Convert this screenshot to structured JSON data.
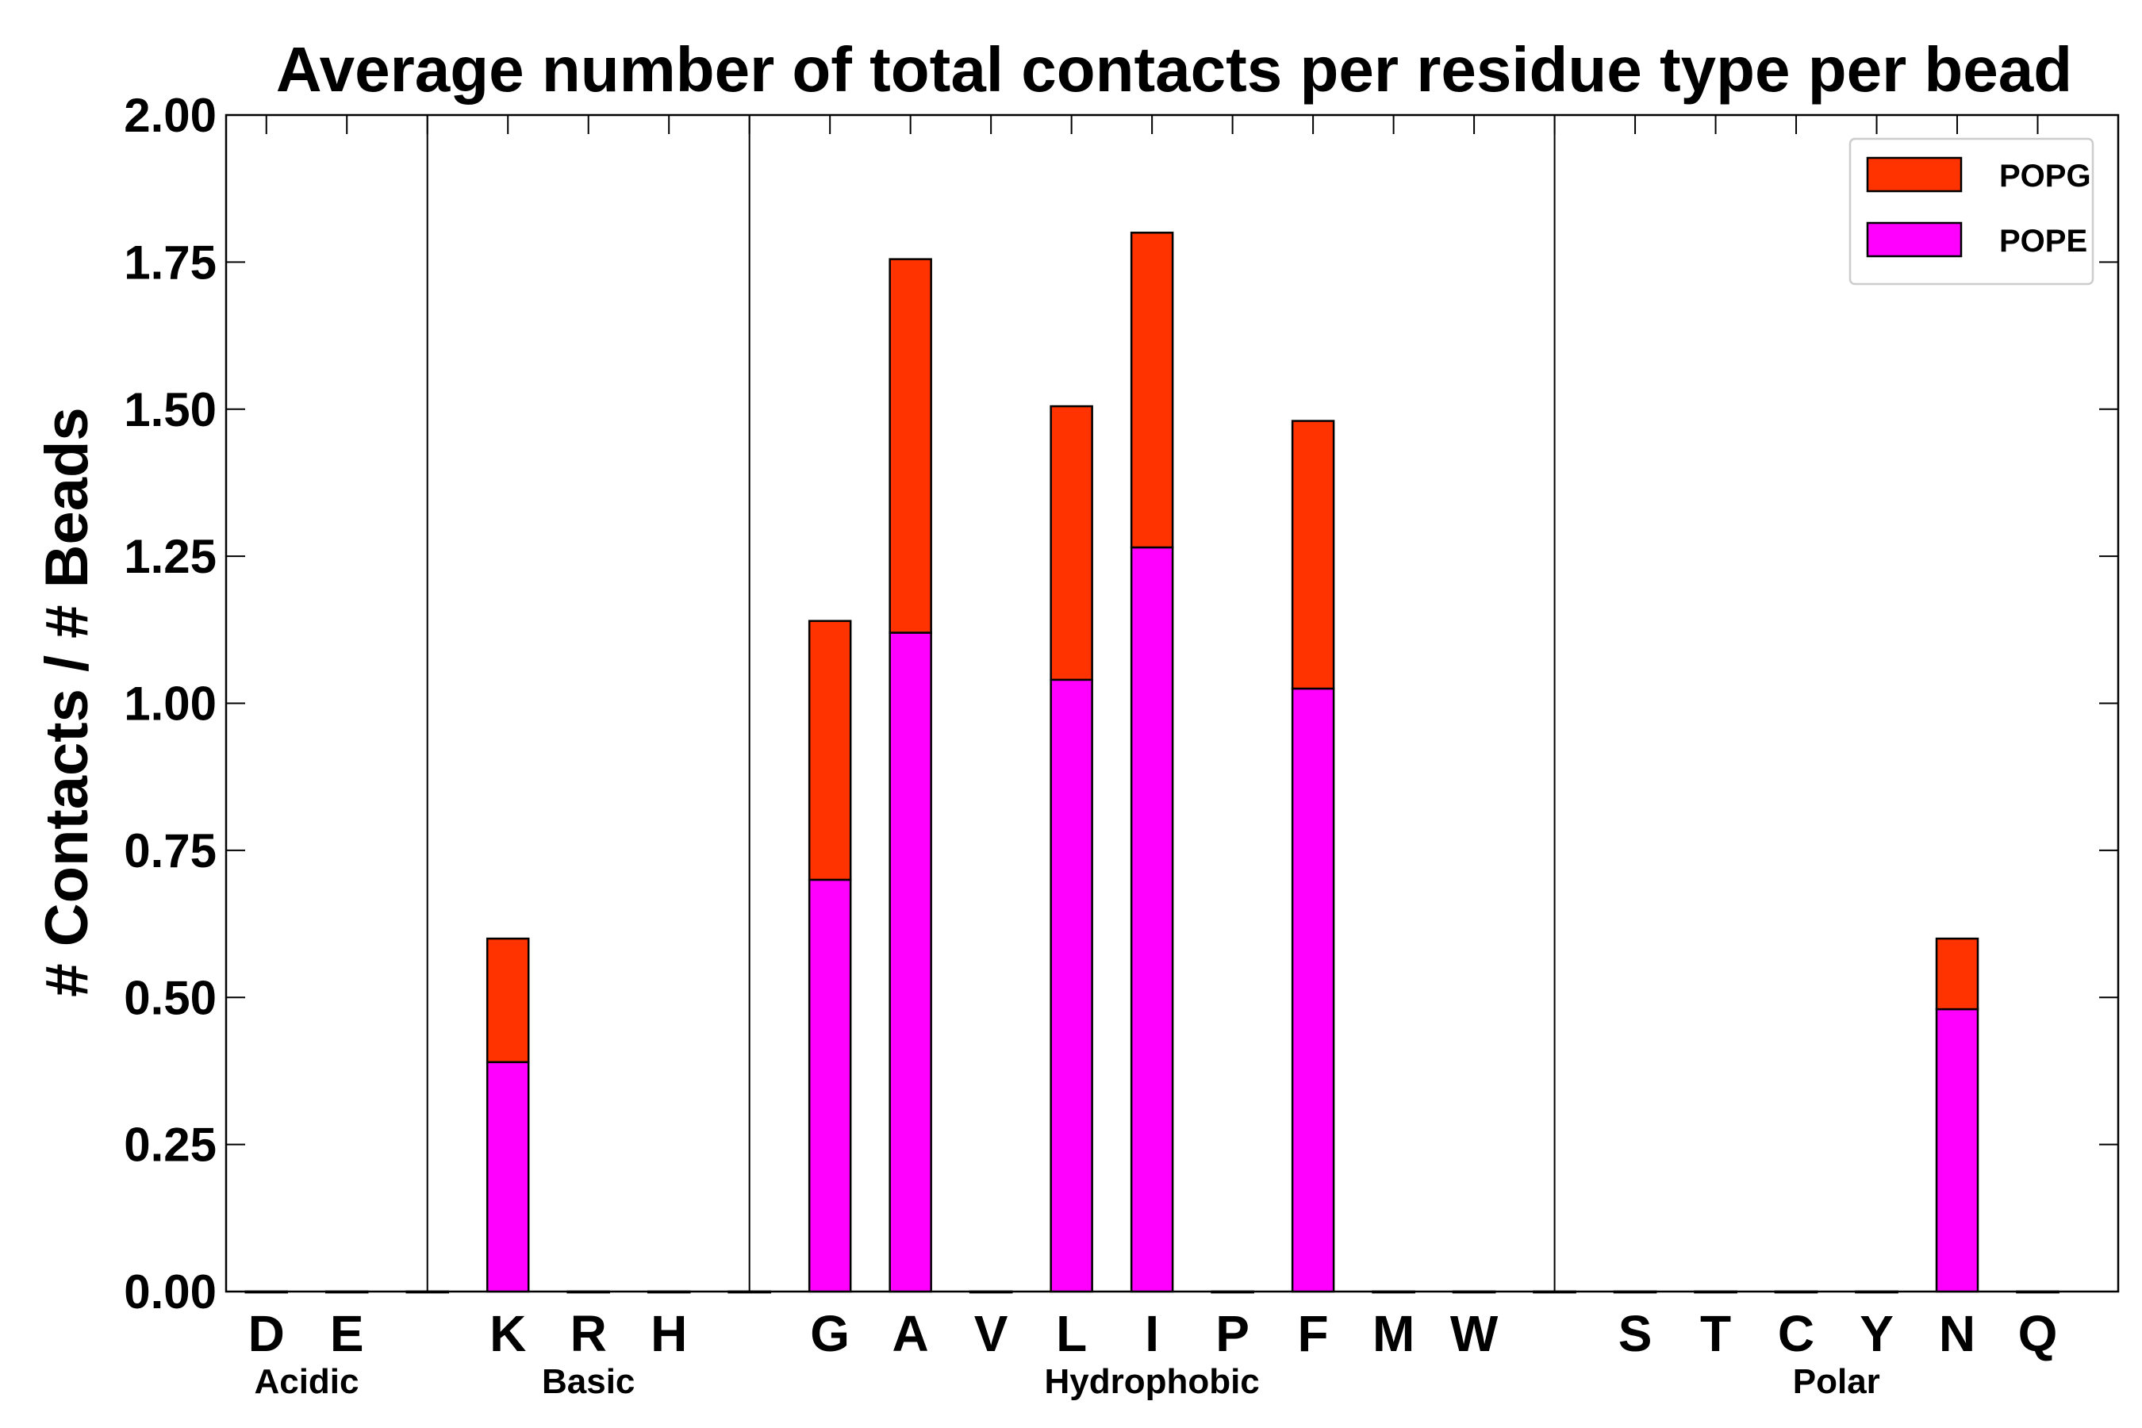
{
  "chart_data": {
    "type": "bar",
    "stacked": true,
    "title": "Average number of total contacts per residue type per bead",
    "xlabel": "",
    "ylabel": "# Contacts / # Beads",
    "ylim": [
      0,
      2.0
    ],
    "yticks": [
      "0.00",
      "0.25",
      "0.50",
      "0.75",
      "1.00",
      "1.25",
      "1.50",
      "1.75",
      "2.00"
    ],
    "categories": [
      "D",
      "E",
      "",
      "K",
      "R",
      "H",
      "",
      "G",
      "A",
      "V",
      "L",
      "I",
      "P",
      "F",
      "M",
      "W",
      "",
      "S",
      "T",
      "C",
      "Y",
      "N",
      "Q"
    ],
    "groups": [
      {
        "label": "Acidic",
        "start": 0,
        "end": 1
      },
      {
        "label": "Basic",
        "start": 3,
        "end": 5
      },
      {
        "label": "Hydrophobic",
        "start": 7,
        "end": 15
      },
      {
        "label": "Polar",
        "start": 17,
        "end": 22
      }
    ],
    "separators_after": [
      2,
      6,
      16
    ],
    "series": [
      {
        "name": "POPE",
        "color": "#ff00ff",
        "values": [
          0,
          0,
          0,
          0.39,
          0,
          0,
          0,
          0.7,
          1.12,
          0,
          1.04,
          1.265,
          0,
          1.025,
          0,
          0,
          0,
          0,
          0,
          0,
          0,
          0.48,
          0
        ]
      },
      {
        "name": "POPG",
        "color": "#ff3300",
        "values": [
          0,
          0,
          0,
          0.21,
          0,
          0,
          0,
          0.44,
          0.635,
          0,
          0.465,
          0.535,
          0,
          0.455,
          0,
          0,
          0,
          0,
          0,
          0,
          0,
          0.12,
          0
        ]
      }
    ],
    "legend": {
      "position": "top-right",
      "entries": [
        "POPG",
        "POPE"
      ]
    }
  }
}
